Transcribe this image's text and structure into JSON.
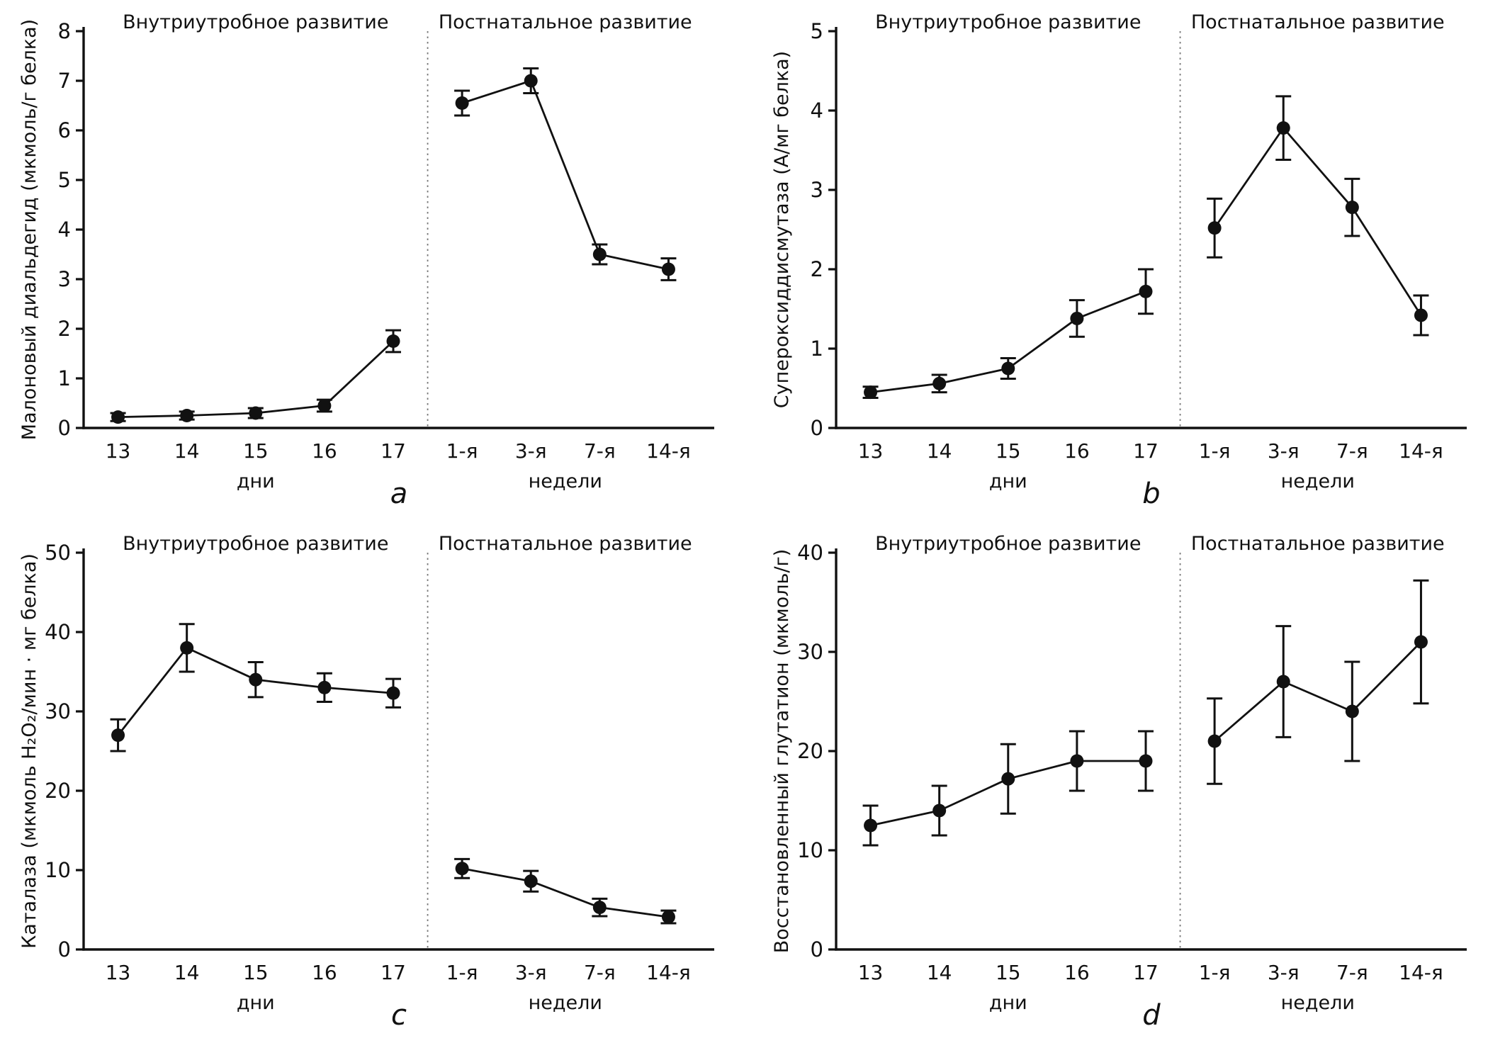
{
  "figure": {
    "background": "#ffffff",
    "ink": "#111111",
    "separator_color": "#777777"
  },
  "chart_data": [
    {
      "type": "line",
      "panel_label": "a",
      "section_titles": [
        "Внутриутробное развитие",
        "Постнатальное развитие"
      ],
      "ylabel": "Малоновый диальдегид (мкмоль/г белка)",
      "ylim": [
        0,
        8
      ],
      "ytick_step": 1,
      "categories": [
        "13",
        "14",
        "15",
        "16",
        "17",
        "1-я",
        "3-я",
        "7-я",
        "14-я"
      ],
      "group_labels": [
        "дни",
        "недели"
      ],
      "group_split_index": 5,
      "separator": "vertical-dotted-line",
      "marker": "filled-black-circle",
      "error_bars": true,
      "grid": false,
      "legend": "none",
      "values": [
        0.22,
        0.25,
        0.3,
        0.45,
        1.75,
        6.55,
        7.0,
        3.5,
        3.2
      ],
      "errors": [
        0.08,
        0.08,
        0.1,
        0.12,
        0.22,
        0.25,
        0.25,
        0.2,
        0.22
      ]
    },
    {
      "type": "line",
      "panel_label": "b",
      "section_titles": [
        "Внутриутробное развитие",
        "Постнатальное развитие"
      ],
      "ylabel": "Супероксиддисмутаза (А/мг белка)",
      "ylim": [
        0,
        5
      ],
      "ytick_step": 1,
      "categories": [
        "13",
        "14",
        "15",
        "16",
        "17",
        "1-я",
        "3-я",
        "7-я",
        "14-я"
      ],
      "group_labels": [
        "дни",
        "недели"
      ],
      "group_split_index": 5,
      "separator": "vertical-dotted-line",
      "marker": "filled-black-circle",
      "error_bars": true,
      "grid": false,
      "legend": "none",
      "values": [
        0.45,
        0.56,
        0.75,
        1.38,
        1.72,
        2.52,
        3.78,
        2.78,
        1.42
      ],
      "errors": [
        0.07,
        0.11,
        0.13,
        0.23,
        0.28,
        0.37,
        0.4,
        0.36,
        0.25
      ]
    },
    {
      "type": "line",
      "panel_label": "c",
      "section_titles": [
        "Внутриутробное развитие",
        "Постнатальное развитие"
      ],
      "ylabel": "Каталаза (мкмоль Н₂О₂/мин · мг белка)",
      "ylim": [
        0,
        50
      ],
      "ytick_step": 10,
      "categories": [
        "13",
        "14",
        "15",
        "16",
        "17",
        "1-я",
        "3-я",
        "7-я",
        "14-я"
      ],
      "group_labels": [
        "дни",
        "недели"
      ],
      "group_split_index": 5,
      "separator": "vertical-dotted-line",
      "marker": "filled-black-circle",
      "error_bars": true,
      "grid": false,
      "legend": "none",
      "values": [
        27,
        38,
        34,
        33,
        32.3,
        10.2,
        8.6,
        5.3,
        4.1
      ],
      "errors": [
        2.0,
        3.0,
        2.2,
        1.8,
        1.8,
        1.2,
        1.3,
        1.1,
        0.8
      ]
    },
    {
      "type": "line",
      "panel_label": "d",
      "section_titles": [
        "Внутриутробное развитие",
        "Постнатальное развитие"
      ],
      "ylabel": "Восстановленный глутатион (мкмоль/г)",
      "ylim": [
        0,
        40
      ],
      "ytick_step": 10,
      "categories": [
        "13",
        "14",
        "15",
        "16",
        "17",
        "1-я",
        "3-я",
        "7-я",
        "14-я"
      ],
      "group_labels": [
        "дни",
        "недели"
      ],
      "group_split_index": 5,
      "separator": "vertical-dotted-line",
      "marker": "filled-black-circle",
      "error_bars": true,
      "grid": false,
      "legend": "none",
      "values": [
        12.5,
        14,
        17.2,
        19,
        19,
        21,
        27,
        24,
        31
      ],
      "errors": [
        2.0,
        2.5,
        3.5,
        3.0,
        3.0,
        4.3,
        5.6,
        5.0,
        6.2
      ]
    }
  ]
}
